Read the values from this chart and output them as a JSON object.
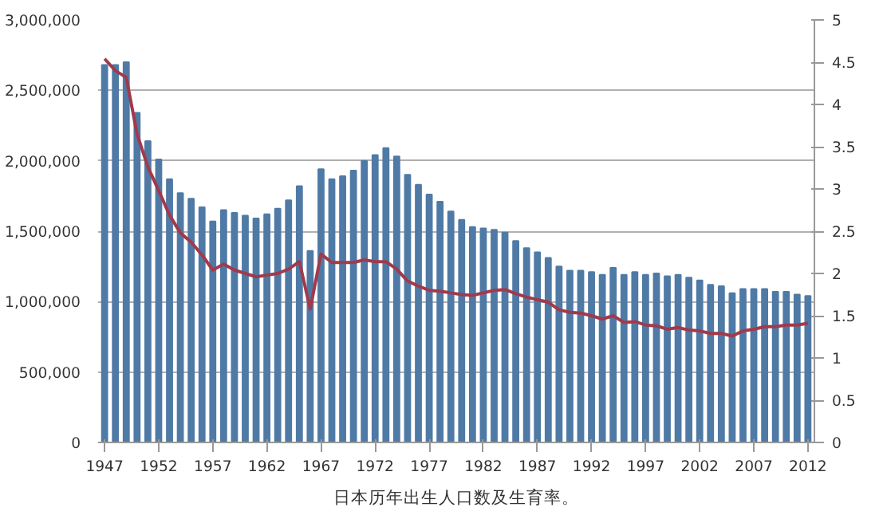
{
  "chart_data": {
    "type": "bar",
    "x": [
      1947,
      1948,
      1949,
      1950,
      1951,
      1952,
      1953,
      1954,
      1955,
      1956,
      1957,
      1958,
      1959,
      1960,
      1961,
      1962,
      1963,
      1964,
      1965,
      1966,
      1967,
      1968,
      1969,
      1970,
      1971,
      1972,
      1973,
      1974,
      1975,
      1976,
      1977,
      1978,
      1979,
      1980,
      1981,
      1982,
      1983,
      1984,
      1985,
      1986,
      1987,
      1988,
      1989,
      1990,
      1991,
      1992,
      1993,
      1994,
      1995,
      1996,
      1997,
      1998,
      1999,
      2000,
      2001,
      2002,
      2003,
      2004,
      2005,
      2006,
      2007,
      2008,
      2009,
      2010,
      2011,
      2012
    ],
    "series": [
      {
        "color": "#4f7aa6",
        "values": [
          2680000,
          2680000,
          2700000,
          2340000,
          2140000,
          2010000,
          1870000,
          1770000,
          1730000,
          1670000,
          1570000,
          1650000,
          1630000,
          1610000,
          1590000,
          1620000,
          1660000,
          1720000,
          1820000,
          1360000,
          1940000,
          1870000,
          1890000,
          1930000,
          2000000,
          2040000,
          2090000,
          2030000,
          1900000,
          1830000,
          1760000,
          1710000,
          1640000,
          1580000,
          1530000,
          1520000,
          1510000,
          1490000,
          1430000,
          1380000,
          1350000,
          1310000,
          1250000,
          1220000,
          1220000,
          1210000,
          1190000,
          1240000,
          1190000,
          1210000,
          1190000,
          1200000,
          1180000,
          1190000,
          1170000,
          1150000,
          1120000,
          1110000,
          1060000,
          1090000,
          1090000,
          1090000,
          1070000,
          1070000,
          1050000,
          1040000
        ]
      },
      {
        "type": "line",
        "axis": "y2",
        "color": "#a03a4c",
        "values": [
          4.54,
          4.4,
          4.32,
          3.65,
          3.26,
          2.98,
          2.69,
          2.48,
          2.37,
          2.22,
          2.04,
          2.11,
          2.04,
          2.0,
          1.96,
          1.98,
          2.0,
          2.05,
          2.14,
          1.58,
          2.23,
          2.13,
          2.13,
          2.13,
          2.16,
          2.14,
          2.14,
          2.05,
          1.91,
          1.85,
          1.8,
          1.79,
          1.77,
          1.75,
          1.74,
          1.77,
          1.8,
          1.81,
          1.76,
          1.72,
          1.69,
          1.66,
          1.57,
          1.54,
          1.53,
          1.5,
          1.46,
          1.5,
          1.42,
          1.43,
          1.39,
          1.38,
          1.34,
          1.36,
          1.33,
          1.32,
          1.29,
          1.29,
          1.26,
          1.32,
          1.34,
          1.37,
          1.37,
          1.39,
          1.39,
          1.41
        ]
      }
    ],
    "xlim": [
      1946.4,
      2012.6
    ],
    "xticks": [
      1947,
      1952,
      1957,
      1962,
      1967,
      1972,
      1977,
      1982,
      1987,
      1992,
      1997,
      2002,
      2007,
      2012
    ],
    "ylim": [
      0,
      3000000
    ],
    "yticks": [
      {
        "value": 0,
        "label": "0"
      },
      {
        "value": 500000,
        "label": "500,000"
      },
      {
        "value": 1000000,
        "label": "1,000,000"
      },
      {
        "value": 1500000,
        "label": "1,500,000"
      },
      {
        "value": 2000000,
        "label": "2,000,000"
      },
      {
        "value": 2500000,
        "label": "2,500,000"
      },
      {
        "value": 3000000,
        "label": "3,000,000"
      }
    ],
    "y2lim": [
      0,
      5
    ],
    "y2ticks": [
      0,
      0.5,
      1,
      1.5,
      2,
      2.5,
      3,
      3.5,
      4,
      4.5,
      5
    ],
    "grid": "y",
    "annotations": [
      "日本历年出生人口数及生育率。"
    ]
  }
}
